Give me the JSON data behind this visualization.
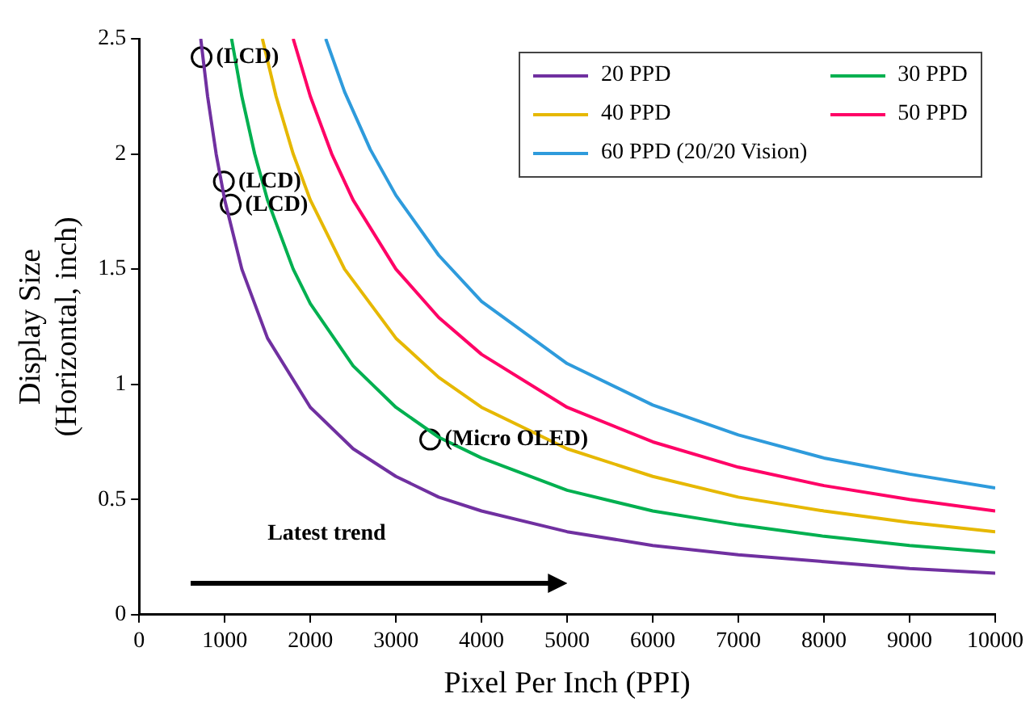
{
  "chart_data": {
    "type": "line",
    "xlabel": "Pixel Per Inch (PPI)",
    "ylabel": "Display Size\n(Horizontal, inch)",
    "xlim": [
      0,
      10000
    ],
    "xticks": [
      0,
      1000,
      2000,
      3000,
      4000,
      5000,
      6000,
      7000,
      8000,
      9000,
      10000
    ],
    "ylim": [
      0,
      2.5
    ],
    "yticks": [
      0,
      0.5,
      1,
      1.5,
      2,
      2.5
    ],
    "grid": false,
    "legend": "top right",
    "marker": "none",
    "line_style": "solid",
    "series": [
      {
        "name": "20 PPD",
        "color": "#7030a0",
        "x": [
          720,
          800,
          900,
          1000,
          1200,
          1500,
          2000,
          2500,
          3000,
          3500,
          4000,
          5000,
          6000,
          7000,
          8000,
          9000,
          10000
        ],
        "values": [
          2.5,
          2.25,
          2.0,
          1.8,
          1.5,
          1.2,
          0.9,
          0.72,
          0.6,
          0.51,
          0.45,
          0.36,
          0.3,
          0.26,
          0.23,
          0.2,
          0.18
        ]
      },
      {
        "name": "30 PPD",
        "color": "#00b050",
        "x": [
          1080,
          1200,
          1350,
          1500,
          1800,
          2000,
          2500,
          3000,
          3500,
          4000,
          5000,
          6000,
          7000,
          8000,
          9000,
          10000
        ],
        "values": [
          2.5,
          2.25,
          2.0,
          1.8,
          1.5,
          1.35,
          1.08,
          0.9,
          0.77,
          0.68,
          0.54,
          0.45,
          0.39,
          0.34,
          0.3,
          0.27
        ]
      },
      {
        "name": "40 PPD",
        "color": "#e6b800",
        "x": [
          1440,
          1600,
          1800,
          2000,
          2400,
          3000,
          3500,
          4000,
          5000,
          6000,
          7000,
          8000,
          9000,
          10000
        ],
        "values": [
          2.5,
          2.25,
          2.0,
          1.8,
          1.5,
          1.2,
          1.03,
          0.9,
          0.72,
          0.6,
          0.51,
          0.45,
          0.4,
          0.36
        ]
      },
      {
        "name": "50 PPD",
        "color": "#ff0066",
        "x": [
          1800,
          2000,
          2250,
          2500,
          3000,
          3500,
          4000,
          5000,
          6000,
          7000,
          8000,
          9000,
          10000
        ],
        "values": [
          2.5,
          2.25,
          2.0,
          1.8,
          1.5,
          1.29,
          1.13,
          0.9,
          0.75,
          0.64,
          0.56,
          0.5,
          0.45
        ]
      },
      {
        "name": "60 PPD (20/20 Vision)",
        "color": "#2e9bdc",
        "x": [
          2180,
          2400,
          2700,
          3000,
          3500,
          4000,
          5000,
          6000,
          7000,
          8000,
          9000,
          10000
        ],
        "values": [
          2.5,
          2.27,
          2.02,
          1.82,
          1.56,
          1.36,
          1.09,
          0.91,
          0.78,
          0.68,
          0.61,
          0.55
        ]
      },
      {
        "type": "scatter",
        "marker": "circle",
        "color": "#000000",
        "x": [
          730,
          990,
          1070,
          3400
        ],
        "values": [
          2.42,
          1.88,
          1.78,
          0.76
        ]
      }
    ],
    "annotations": [
      {
        "text": "(LCD)",
        "x": 730,
        "y": 2.42
      },
      {
        "text": "(LCD)",
        "x": 990,
        "y": 1.88
      },
      {
        "text": "(LCD)",
        "x": 1070,
        "y": 1.78
      },
      {
        "text": "(Micro OLED)",
        "x": 3400,
        "y": 0.76
      },
      "Latest trend"
    ]
  }
}
